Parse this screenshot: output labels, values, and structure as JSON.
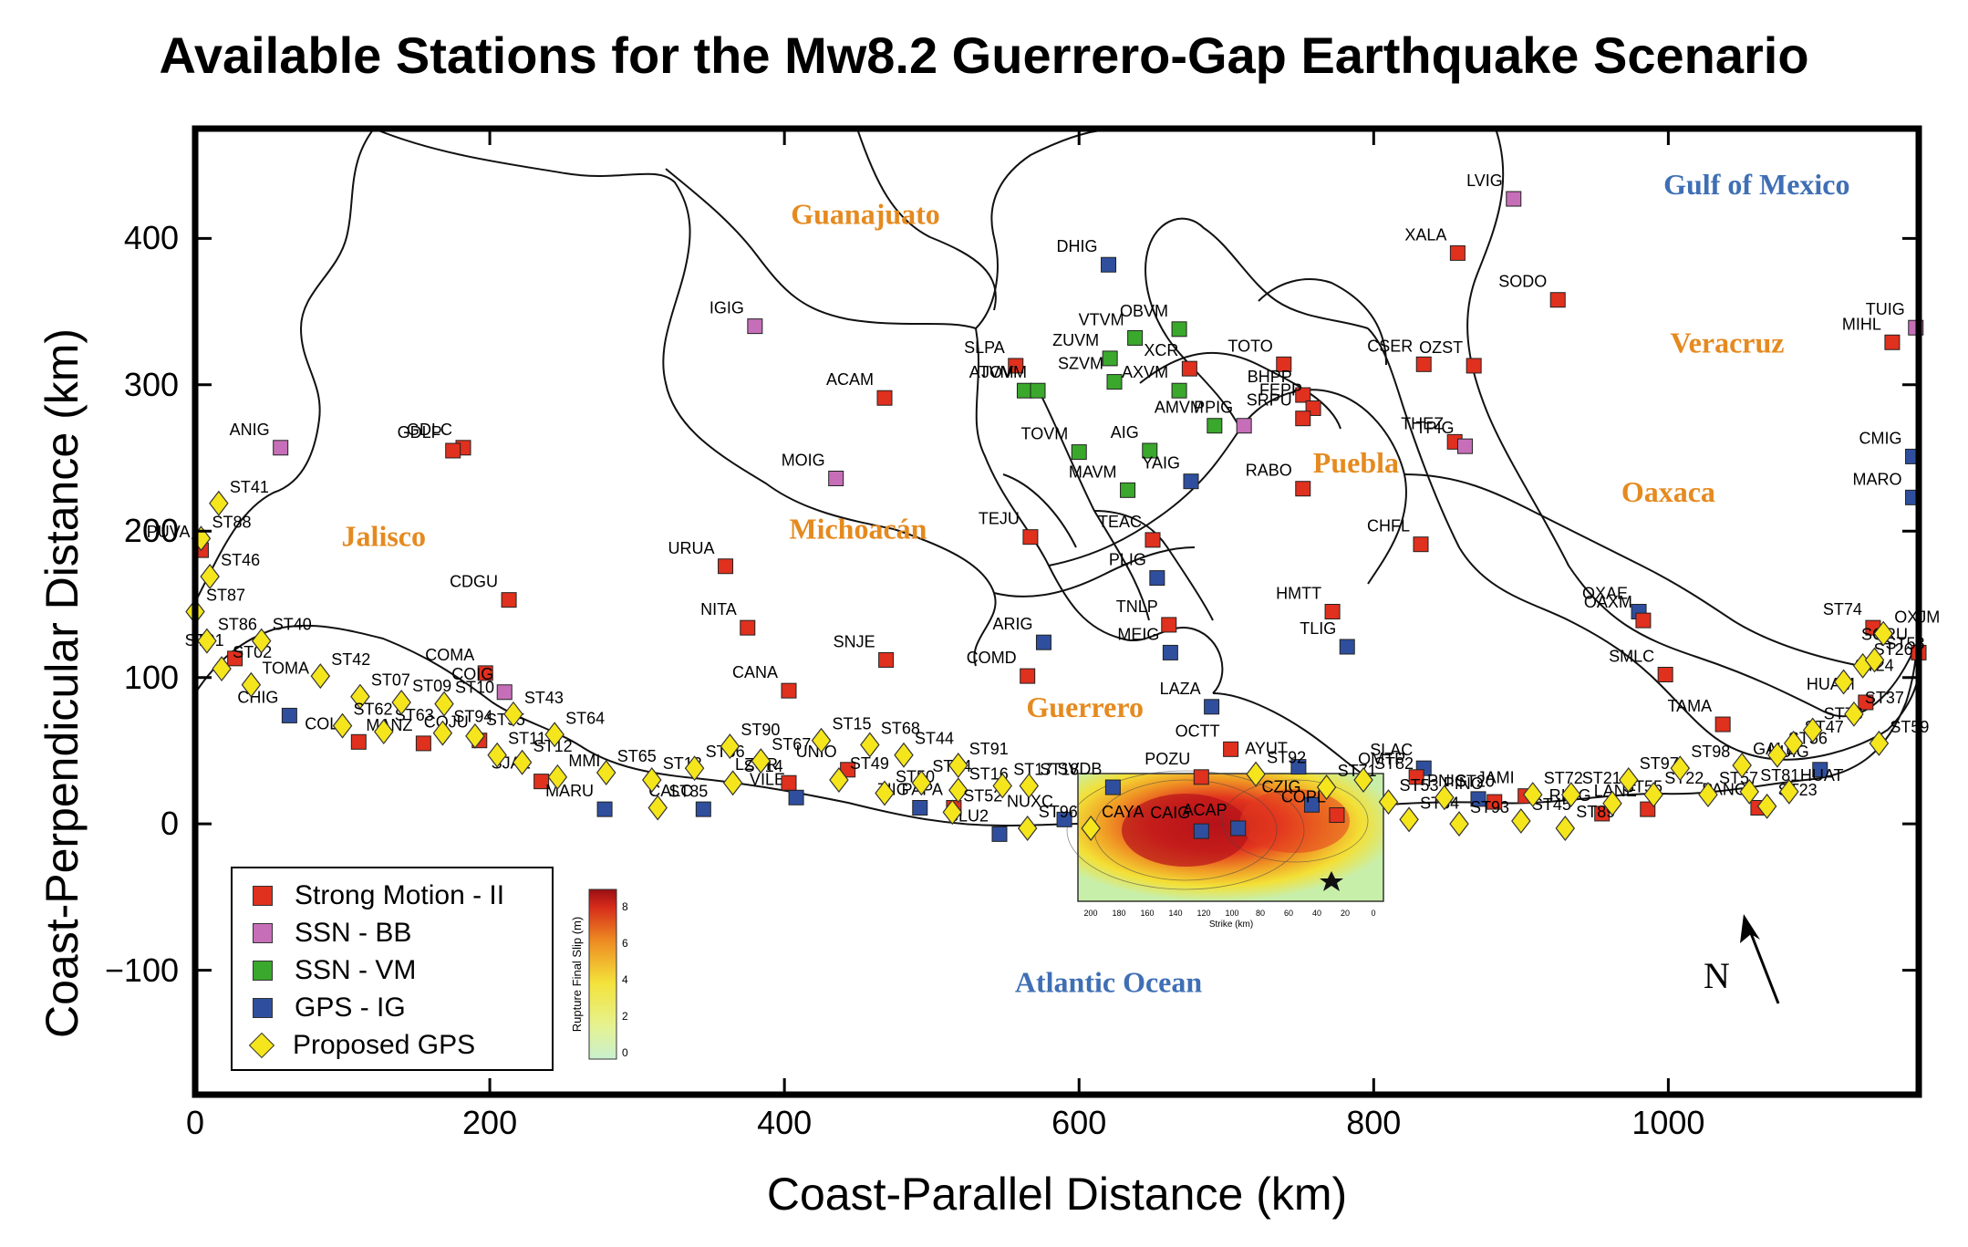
{
  "title": "Available Stations for the Mw8.2 Guerrero-Gap Earthquake Scenario",
  "axes": {
    "xlabel": "Coast-Parallel Distance (km)",
    "ylabel": "Coast-Perpendicular Distance (km)",
    "xticks": [
      "0",
      "200",
      "400",
      "600",
      "800",
      "1000"
    ],
    "yticks": [
      "400",
      "300",
      "200",
      "100",
      "0",
      "−100"
    ],
    "xlim": [
      0,
      1170
    ],
    "ylim": [
      -185,
      475
    ]
  },
  "colors": {
    "strong_motion": "#e0301e",
    "ssn_bb": "#c66fb8",
    "ssn_vm": "#3aa82c",
    "gps_ig": "#2f4f9e",
    "proposed_gps": "#f5e51c",
    "region_label": "#e58a1f",
    "water_label": "#3f6fb5"
  },
  "legend": [
    {
      "label": "Strong Motion - II",
      "color_key": "strong_motion",
      "shape": "square"
    },
    {
      "label": "SSN - BB",
      "color_key": "ssn_bb",
      "shape": "square"
    },
    {
      "label": "SSN - VM",
      "color_key": "ssn_vm",
      "shape": "square"
    },
    {
      "label": "GPS - IG",
      "color_key": "gps_ig",
      "shape": "square"
    },
    {
      "label": "Proposed GPS",
      "color_key": "proposed_gps",
      "shape": "diamond"
    }
  ],
  "regions": [
    {
      "name": "Guanajuato",
      "x": 455,
      "y": 410,
      "kind": "state"
    },
    {
      "name": "Jalisco",
      "x": 128,
      "y": 190,
      "kind": "state"
    },
    {
      "name": "Michoacán",
      "x": 450,
      "y": 195,
      "kind": "state"
    },
    {
      "name": "Guerrero",
      "x": 604,
      "y": 73,
      "kind": "state"
    },
    {
      "name": "Puebla",
      "x": 788,
      "y": 240,
      "kind": "state"
    },
    {
      "name": "Oaxaca",
      "x": 1000,
      "y": 220,
      "kind": "state"
    },
    {
      "name": "Veracruz",
      "x": 1040,
      "y": 322,
      "kind": "state"
    },
    {
      "name": "Gulf of Mexico",
      "x": 1060,
      "y": 430,
      "kind": "water"
    },
    {
      "name": "Atlantic Ocean",
      "x": 620,
      "y": -115,
      "kind": "water"
    }
  ],
  "north_arrow": "N",
  "inset": {
    "colorbar_label": "Rupture Final Slip (m)",
    "colorbar_ticks": [
      "0",
      "2",
      "4",
      "6",
      "8"
    ],
    "xticks": [
      "200",
      "180",
      "160",
      "140",
      "120",
      "100",
      "80",
      "60",
      "40",
      "20",
      "0"
    ],
    "xlabel": "Strike (km)"
  },
  "stations": [
    {
      "name": "LVIG",
      "x": 895,
      "y": 427,
      "type": "ssn_bb"
    },
    {
      "name": "XALA",
      "x": 857,
      "y": 390,
      "type": "strong_motion"
    },
    {
      "name": "SODO",
      "x": 925,
      "y": 358,
      "type": "strong_motion"
    },
    {
      "name": "TUIG",
      "x": 1168,
      "y": 339,
      "type": "ssn_bb"
    },
    {
      "name": "MIHL",
      "x": 1152,
      "y": 329,
      "type": "strong_motion"
    },
    {
      "name": "DHIG",
      "x": 620,
      "y": 382,
      "type": "gps_ig"
    },
    {
      "name": "IGIG",
      "x": 380,
      "y": 340,
      "type": "ssn_bb"
    },
    {
      "name": "ACAM",
      "x": 468,
      "y": 291,
      "type": "strong_motion"
    },
    {
      "name": "SLPA",
      "x": 557,
      "y": 313,
      "type": "strong_motion"
    },
    {
      "name": "ATVM",
      "x": 563,
      "y": 296,
      "type": "ssn_vm"
    },
    {
      "name": "JOVM",
      "x": 572,
      "y": 296,
      "type": "ssn_vm"
    },
    {
      "name": "TOVM",
      "x": 600,
      "y": 254,
      "type": "ssn_vm"
    },
    {
      "name": "MAVM",
      "x": 633,
      "y": 228,
      "type": "ssn_vm"
    },
    {
      "name": "ZUVM",
      "x": 621,
      "y": 318,
      "type": "ssn_vm"
    },
    {
      "name": "VTVM",
      "x": 638,
      "y": 332,
      "type": "ssn_vm"
    },
    {
      "name": "OBVM",
      "x": 668,
      "y": 338,
      "type": "ssn_vm"
    },
    {
      "name": "SZVM",
      "x": 624,
      "y": 302,
      "type": "ssn_vm"
    },
    {
      "name": "AMVM",
      "x": 692,
      "y": 272,
      "type": "ssn_vm"
    },
    {
      "name": "XCR",
      "x": 675,
      "y": 311,
      "type": "strong_motion"
    },
    {
      "name": "AXVM",
      "x": 668,
      "y": 296,
      "type": "ssn_vm"
    },
    {
      "name": "AIG",
      "x": 648,
      "y": 255,
      "type": "ssn_vm"
    },
    {
      "name": "YAIG",
      "x": 676,
      "y": 234,
      "type": "gps_ig"
    },
    {
      "name": "PPIG",
      "x": 712,
      "y": 272,
      "type": "ssn_bb"
    },
    {
      "name": "TOTO",
      "x": 739,
      "y": 314,
      "type": "strong_motion"
    },
    {
      "name": "BHPP",
      "x": 752,
      "y": 293,
      "type": "strong_motion"
    },
    {
      "name": "FEPP",
      "x": 759,
      "y": 284,
      "type": "strong_motion"
    },
    {
      "name": "SRPU",
      "x": 752,
      "y": 277,
      "type": "strong_motion"
    },
    {
      "name": "RABO",
      "x": 752,
      "y": 229,
      "type": "strong_motion"
    },
    {
      "name": "CSER",
      "x": 834,
      "y": 314,
      "type": "strong_motion"
    },
    {
      "name": "OZST",
      "x": 868,
      "y": 313,
      "type": "strong_motion"
    },
    {
      "name": "THEZ",
      "x": 855,
      "y": 261,
      "type": "strong_motion"
    },
    {
      "name": "TPIG",
      "x": 862,
      "y": 258,
      "type": "ssn_bb"
    },
    {
      "name": "CHFL",
      "x": 832,
      "y": 191,
      "type": "strong_motion"
    },
    {
      "name": "CMIG",
      "x": 1166,
      "y": 251,
      "type": "gps_ig"
    },
    {
      "name": "MARO",
      "x": 1166,
      "y": 223,
      "type": "gps_ig"
    },
    {
      "name": "ANIG",
      "x": 58,
      "y": 257,
      "type": "ssn_bb"
    },
    {
      "name": "GDLC",
      "x": 182,
      "y": 257,
      "type": "strong_motion"
    },
    {
      "name": "GDLP",
      "x": 175,
      "y": 255,
      "type": "strong_motion"
    },
    {
      "name": "MOIG",
      "x": 435,
      "y": 236,
      "type": "ssn_bb"
    },
    {
      "name": "URUA",
      "x": 360,
      "y": 176,
      "type": "strong_motion"
    },
    {
      "name": "TEJU",
      "x": 567,
      "y": 196,
      "type": "strong_motion"
    },
    {
      "name": "TEAC",
      "x": 650,
      "y": 194,
      "type": "strong_motion"
    },
    {
      "name": "PLIG",
      "x": 653,
      "y": 168,
      "type": "gps_ig"
    },
    {
      "name": "NITA",
      "x": 375,
      "y": 134,
      "type": "strong_motion"
    },
    {
      "name": "SNJE",
      "x": 469,
      "y": 112,
      "type": "strong_motion"
    },
    {
      "name": "ARIG",
      "x": 576,
      "y": 124,
      "type": "gps_ig"
    },
    {
      "name": "COMD",
      "x": 565,
      "y": 101,
      "type": "strong_motion"
    },
    {
      "name": "TNLP",
      "x": 661,
      "y": 136,
      "type": "strong_motion"
    },
    {
      "name": "MEIG",
      "x": 662,
      "y": 117,
      "type": "gps_ig"
    },
    {
      "name": "HMTT",
      "x": 772,
      "y": 145,
      "type": "strong_motion"
    },
    {
      "name": "TLIG",
      "x": 782,
      "y": 121,
      "type": "gps_ig"
    },
    {
      "name": "LAZA",
      "x": 690,
      "y": 80,
      "type": "gps_ig"
    },
    {
      "name": "OCTT",
      "x": 703,
      "y": 51,
      "type": "strong_motion"
    },
    {
      "name": "CANA",
      "x": 403,
      "y": 91,
      "type": "strong_motion"
    },
    {
      "name": "CDGU",
      "x": 213,
      "y": 153,
      "type": "strong_motion"
    },
    {
      "name": "COMA",
      "x": 197,
      "y": 103,
      "type": "strong_motion"
    },
    {
      "name": "COIG",
      "x": 210,
      "y": 90,
      "type": "ssn_bb"
    },
    {
      "name": "PUVA",
      "x": 4,
      "y": 187,
      "type": "strong_motion"
    },
    {
      "name": "ST01",
      "x": 27,
      "y": 113,
      "type": "strong_motion"
    },
    {
      "name": "CHIG",
      "x": 64,
      "y": 74,
      "type": "gps_ig"
    },
    {
      "name": "COLL",
      "x": 111,
      "y": 56,
      "type": "strong_motion"
    },
    {
      "name": "MANZ",
      "x": 155,
      "y": 55,
      "type": "strong_motion"
    },
    {
      "name": "COJU",
      "x": 193,
      "y": 57,
      "type": "strong_motion"
    },
    {
      "name": "SJAL",
      "x": 235,
      "y": 29,
      "type": "strong_motion"
    },
    {
      "name": "MARU",
      "x": 278,
      "y": 10,
      "type": "gps_ig"
    },
    {
      "name": "CALC",
      "x": 345,
      "y": 10,
      "type": "gps_ig"
    },
    {
      "name": "VILE",
      "x": 408,
      "y": 18,
      "type": "gps_ig"
    },
    {
      "name": "LZCR",
      "x": 403,
      "y": 28,
      "type": "strong_motion"
    },
    {
      "name": "UNIO",
      "x": 443,
      "y": 37,
      "type": "strong_motion"
    },
    {
      "name": "ZIIG",
      "x": 492,
      "y": 11,
      "type": "gps_ig"
    },
    {
      "name": "PAPA",
      "x": 515,
      "y": 11,
      "type": "strong_motion"
    },
    {
      "name": "SLU2",
      "x": 546,
      "y": -7,
      "type": "gps_ig"
    },
    {
      "name": "NUXC",
      "x": 590,
      "y": 3,
      "type": "gps_ig"
    },
    {
      "name": "SVDB",
      "x": 623,
      "y": 25,
      "type": "gps_ig"
    },
    {
      "name": "POZU",
      "x": 683,
      "y": 32,
      "type": "strong_motion"
    },
    {
      "name": "CAIG",
      "x": 683,
      "y": -5,
      "type": "gps_ig"
    },
    {
      "name": "ACAP",
      "x": 708,
      "y": -3,
      "type": "gps_ig"
    },
    {
      "name": "CZIG",
      "x": 758,
      "y": 13,
      "type": "gps_ig"
    },
    {
      "name": "COPL",
      "x": 775,
      "y": 6,
      "type": "strong_motion"
    },
    {
      "name": "AYUT",
      "x": 749,
      "y": 39,
      "type": "gps_ig"
    },
    {
      "name": "SLAC",
      "x": 834,
      "y": 38,
      "type": "gps_ig"
    },
    {
      "name": "OMTP",
      "x": 829,
      "y": 32,
      "type": "strong_motion"
    },
    {
      "name": "PNIG",
      "x": 871,
      "y": 17,
      "type": "gps_ig"
    },
    {
      "name": "PINO",
      "x": 882,
      "y": 15,
      "type": "strong_motion"
    },
    {
      "name": "JAMI",
      "x": 903,
      "y": 19,
      "type": "strong_motion"
    },
    {
      "name": "RIOG",
      "x": 955,
      "y": 7,
      "type": "strong_motion"
    },
    {
      "name": "LANE",
      "x": 986,
      "y": 10,
      "type": "strong_motion"
    },
    {
      "name": "PANG",
      "x": 1061,
      "y": 11,
      "type": "strong_motion"
    },
    {
      "name": "TAMA",
      "x": 1037,
      "y": 68,
      "type": "strong_motion"
    },
    {
      "name": "SMLC",
      "x": 998,
      "y": 102,
      "type": "strong_motion"
    },
    {
      "name": "OXAE",
      "x": 980,
      "y": 145,
      "type": "gps_ig"
    },
    {
      "name": "OAXM",
      "x": 983,
      "y": 139,
      "type": "strong_motion"
    },
    {
      "name": "HUIG",
      "x": 1103,
      "y": 37,
      "type": "gps_ig"
    },
    {
      "name": "ST74",
      "x": 1139,
      "y": 134,
      "type": "strong_motion"
    },
    {
      "name": "HUAM",
      "x": 1134,
      "y": 83,
      "type": "strong_motion"
    },
    {
      "name": "SCRU",
      "x": 1170,
      "y": 117,
      "type": "strong_motion"
    }
  ],
  "proposed_gps": [
    {
      "name": "ST41",
      "x": 16,
      "y": 219
    },
    {
      "name": "ST88",
      "x": 4,
      "y": 195
    },
    {
      "name": "ST46",
      "x": 10,
      "y": 169
    },
    {
      "name": "ST87",
      "x": 0,
      "y": 145
    },
    {
      "name": "ST86",
      "x": 8,
      "y": 125
    },
    {
      "name": "ST02",
      "x": 18,
      "y": 106
    },
    {
      "name": "ST40",
      "x": 45,
      "y": 125
    },
    {
      "name": "TOMA",
      "x": 38,
      "y": 95
    },
    {
      "name": "ST42",
      "x": 85,
      "y": 101
    },
    {
      "name": "ST07",
      "x": 112,
      "y": 87
    },
    {
      "name": "ST62",
      "x": 100,
      "y": 67
    },
    {
      "name": "ST63",
      "x": 128,
      "y": 63
    },
    {
      "name": "ST09",
      "x": 140,
      "y": 83
    },
    {
      "name": "ST94",
      "x": 168,
      "y": 62
    },
    {
      "name": "ST10",
      "x": 169,
      "y": 82
    },
    {
      "name": "ST95",
      "x": 190,
      "y": 60
    },
    {
      "name": "ST11",
      "x": 205,
      "y": 47
    },
    {
      "name": "ST43",
      "x": 216,
      "y": 75
    },
    {
      "name": "ST12",
      "x": 222,
      "y": 42
    },
    {
      "name": "ST64",
      "x": 244,
      "y": 61
    },
    {
      "name": "MMI",
      "x": 246,
      "y": 32
    },
    {
      "name": "ST65",
      "x": 279,
      "y": 35
    },
    {
      "name": "ST85",
      "x": 314,
      "y": 11
    },
    {
      "name": "ST13",
      "x": 310,
      "y": 30
    },
    {
      "name": "ST66",
      "x": 339,
      "y": 38
    },
    {
      "name": "ST14",
      "x": 365,
      "y": 28
    },
    {
      "name": "ST90",
      "x": 363,
      "y": 53
    },
    {
      "name": "ST67",
      "x": 384,
      "y": 43
    },
    {
      "name": "ST15",
      "x": 425,
      "y": 57
    },
    {
      "name": "ST49",
      "x": 437,
      "y": 30
    },
    {
      "name": "ST68",
      "x": 458,
      "y": 54
    },
    {
      "name": "ST44",
      "x": 481,
      "y": 47
    },
    {
      "name": "ST50",
      "x": 468,
      "y": 21
    },
    {
      "name": "ST84",
      "x": 493,
      "y": 28
    },
    {
      "name": "ST91",
      "x": 518,
      "y": 40
    },
    {
      "name": "ST16",
      "x": 518,
      "y": 23
    },
    {
      "name": "ST52",
      "x": 514,
      "y": 8
    },
    {
      "name": "ST17",
      "x": 548,
      "y": 26
    },
    {
      "name": "ST18",
      "x": 566,
      "y": 26
    },
    {
      "name": "ST96",
      "x": 565,
      "y": -3
    },
    {
      "name": "CAYA",
      "x": 608,
      "y": -3
    },
    {
      "name": "ST92",
      "x": 720,
      "y": 34
    },
    {
      "name": "ST71",
      "x": 768,
      "y": 25
    },
    {
      "name": "ST82",
      "x": 793,
      "y": 30
    },
    {
      "name": "ST53",
      "x": 810,
      "y": 15
    },
    {
      "name": "ST54",
      "x": 824,
      "y": 3
    },
    {
      "name": "ST20",
      "x": 848,
      "y": 18
    },
    {
      "name": "ST93",
      "x": 858,
      "y": 0
    },
    {
      "name": "ST45",
      "x": 900,
      "y": 2
    },
    {
      "name": "ST72",
      "x": 908,
      "y": 20
    },
    {
      "name": "ST21",
      "x": 934,
      "y": 20
    },
    {
      "name": "ST89",
      "x": 930,
      "y": -3
    },
    {
      "name": "ST55",
      "x": 962,
      "y": 14
    },
    {
      "name": "ST97",
      "x": 973,
      "y": 30
    },
    {
      "name": "ST22",
      "x": 990,
      "y": 20
    },
    {
      "name": "ST98",
      "x": 1008,
      "y": 38
    },
    {
      "name": "ST57",
      "x": 1027,
      "y": 20
    },
    {
      "name": "ST81",
      "x": 1055,
      "y": 22
    },
    {
      "name": "GALE",
      "x": 1050,
      "y": 40
    },
    {
      "name": "ST23",
      "x": 1067,
      "y": 12
    },
    {
      "name": "ST56",
      "x": 1074,
      "y": 47
    },
    {
      "name": "ST47",
      "x": 1085,
      "y": 55
    },
    {
      "name": "ST73",
      "x": 1098,
      "y": 64
    },
    {
      "name": "HUAT",
      "x": 1082,
      "y": 22
    },
    {
      "name": "ST37",
      "x": 1126,
      "y": 75
    },
    {
      "name": "ST24",
      "x": 1119,
      "y": 97
    },
    {
      "name": "ST26",
      "x": 1132,
      "y": 108
    },
    {
      "name": "ST58",
      "x": 1140,
      "y": 112
    },
    {
      "name": "OXJM",
      "x": 1146,
      "y": 130
    },
    {
      "name": "ST59",
      "x": 1143,
      "y": 55
    }
  ]
}
